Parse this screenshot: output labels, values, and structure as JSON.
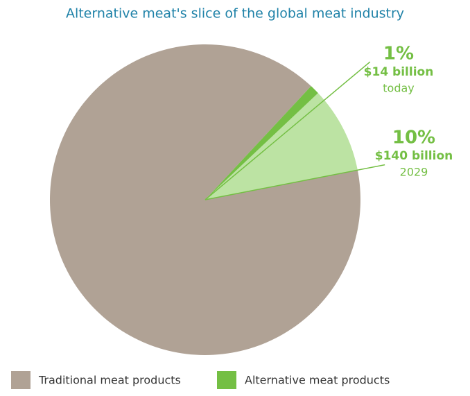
{
  "chart_data": {
    "type": "pie",
    "title": "Alternative meat's slice of the global meat industry",
    "series": [
      {
        "name": "Traditional meat products",
        "color": "#b0a295",
        "values": [
          90
        ]
      },
      {
        "name": "Alternative meat products",
        "color": "#74bf44",
        "light_color": "#bce3a3",
        "values": [
          1,
          10
        ],
        "value_labels": [
          "1%",
          "10%"
        ],
        "amounts": [
          "$14 billion",
          "$140 billion"
        ],
        "periods": [
          "today",
          "2029"
        ]
      }
    ]
  }
}
